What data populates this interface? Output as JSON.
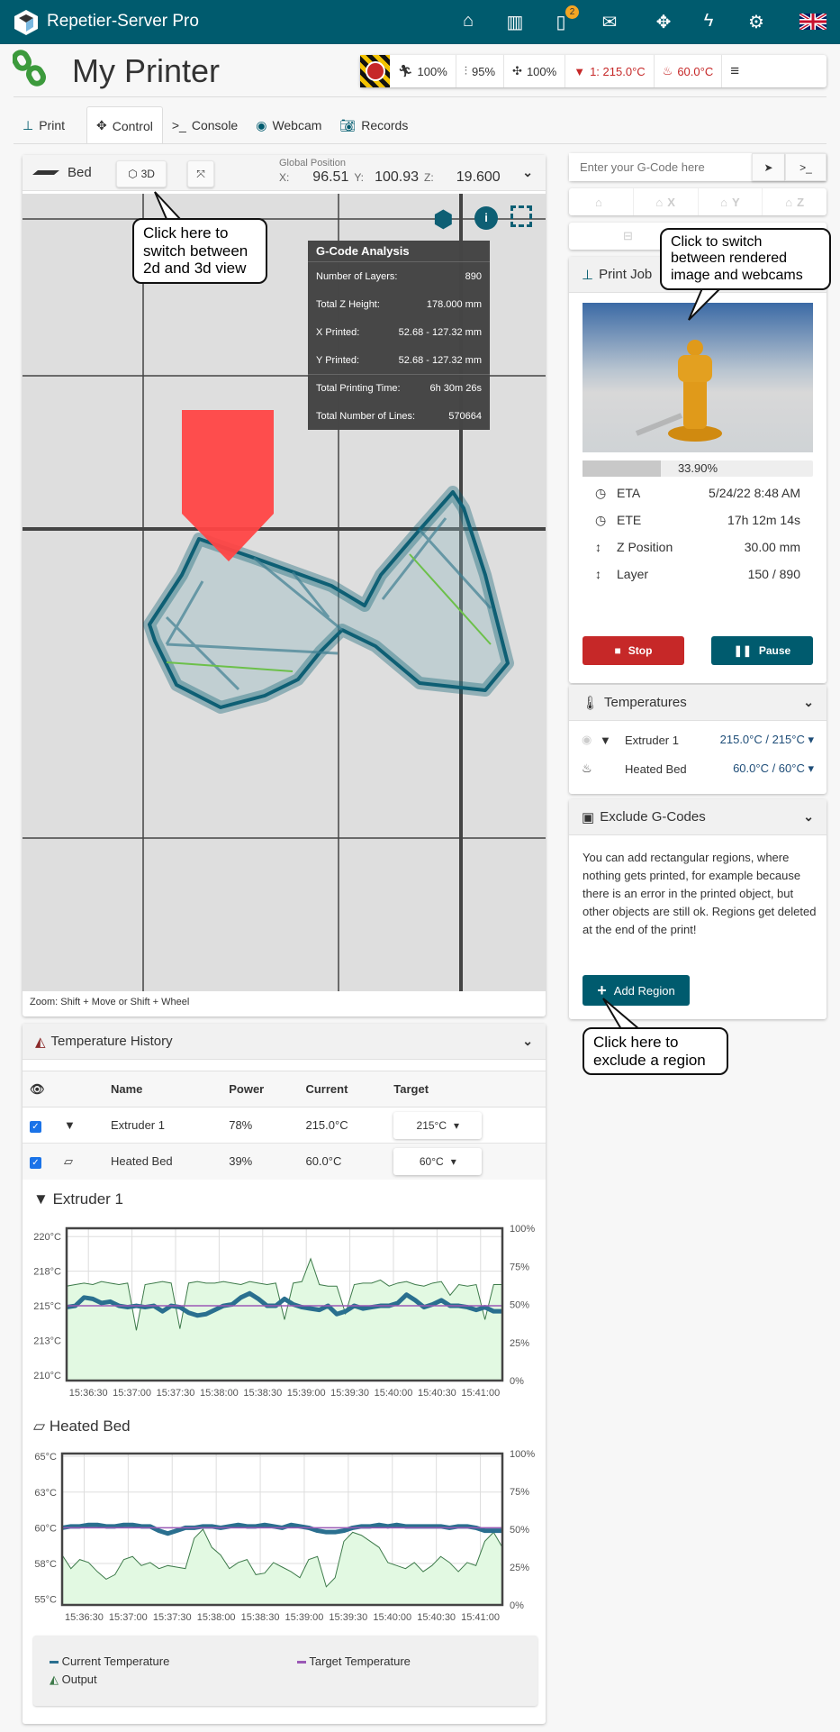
{
  "topbar": {
    "brand": "Repetier-Server Pro",
    "notification_count": "2",
    "icons": [
      "home-icon",
      "archive-icon",
      "tablet-icon",
      "mail-icon",
      "expand-icon",
      "bolt-icon",
      "gear-icon",
      "uk-flag-icon"
    ]
  },
  "header": {
    "title": "My Printer",
    "status": {
      "speed": "100%",
      "flow": "95%",
      "fan": "100%",
      "extruder": "1: 215.0°C",
      "bed": "60.0°C"
    }
  },
  "tabs": [
    {
      "label": "Print"
    },
    {
      "label": "Control"
    },
    {
      "label": "Console"
    },
    {
      "label": "Webcam"
    },
    {
      "label": "Records"
    }
  ],
  "bed_panel": {
    "title": "Bed",
    "view_toggle": "3D",
    "global_position_label": "Global Position",
    "x_label": "X:",
    "x": "96.51",
    "y_label": "Y:",
    "y": "100.93",
    "z_label": "Z:",
    "z": "19.600",
    "zoom_hint": "Zoom: Shift + Move or Shift + Wheel",
    "analysis": {
      "title": "G-Code Analysis",
      "rows": [
        {
          "label": "Number of Layers:",
          "value": "890"
        },
        {
          "label": "Total Z Height:",
          "value": "178.000 mm"
        },
        {
          "label": "X Printed:",
          "value": "52.68 - 127.32 mm"
        },
        {
          "label": "Y Printed:",
          "value": "52.68 - 127.32 mm"
        },
        {
          "label": "Total Printing Time:",
          "value": "6h 30m 26s"
        },
        {
          "label": "Total Number of Lines:",
          "value": "570664"
        }
      ]
    }
  },
  "callouts": {
    "view": "Click here to switch between 2d and 3d view",
    "image": "Click to switch between rendered image and webcams",
    "region": "Click here to exclude a region"
  },
  "gcode": {
    "placeholder": "Enter your G-Code here"
  },
  "home_buttons": [
    "",
    "X",
    "Y",
    "Z"
  ],
  "print_job": {
    "title": "Print Job",
    "progress_text": "33.90%",
    "progress": 33.9,
    "rows": [
      {
        "label": "ETA",
        "value": "5/24/22 8:48 AM"
      },
      {
        "label": "ETE",
        "value": "17h 12m 14s"
      },
      {
        "label": "Z Position",
        "value": "30.00 mm"
      },
      {
        "label": "Layer",
        "value": "150 / 890"
      }
    ],
    "stop": "Stop",
    "pause": "Pause"
  },
  "temperatures": {
    "title": "Temperatures",
    "rows": [
      {
        "name": "Extruder 1",
        "value": "215.0°C / 215°C"
      },
      {
        "name": "Heated Bed",
        "value": "60.0°C / 60°C"
      }
    ]
  },
  "exclude": {
    "title": "Exclude G-Codes",
    "text": "You can add rectangular regions, where nothing gets printed, for example because there is an error in the printed object, but other objects are still ok. Regions get deleted at the end of the print!",
    "button": "Add Region"
  },
  "history": {
    "title": "Temperature History",
    "columns": [
      "Name",
      "Power",
      "Current",
      "Target"
    ],
    "rows": [
      {
        "name": "Extruder 1",
        "power": "78%",
        "current": "215.0°C",
        "target": "215°C",
        "visible": true
      },
      {
        "name": "Heated Bed",
        "power": "39%",
        "current": "60.0°C",
        "target": "60°C",
        "visible": true
      }
    ],
    "legend": {
      "current": "Current Temperature",
      "target": "Target Temperature",
      "output": "Output"
    }
  },
  "colors": {
    "brand": "#005b6e",
    "current": "#2a6f8f",
    "target": "#9b59b6",
    "output_line": "#3d7a4a",
    "output_fill": "#e2f9e2",
    "stop": "#c62828"
  },
  "chart_data": [
    {
      "type": "line",
      "title": "Extruder 1",
      "x": [
        "15:36:15",
        "15:36:21",
        "15:36:27",
        "15:36:33",
        "15:36:39",
        "15:36:45",
        "15:36:51",
        "15:36:57",
        "15:37:03",
        "15:37:09",
        "15:37:15",
        "15:37:21",
        "15:37:27",
        "15:37:33",
        "15:37:39",
        "15:37:45",
        "15:37:51",
        "15:37:57",
        "15:38:03",
        "15:38:09",
        "15:38:15",
        "15:38:21",
        "15:38:27",
        "15:38:33",
        "15:38:39",
        "15:38:45",
        "15:38:51",
        "15:38:57",
        "15:39:03",
        "15:39:09",
        "15:39:15",
        "15:39:21",
        "15:39:27",
        "15:39:33",
        "15:39:39",
        "15:39:45",
        "15:39:51",
        "15:39:57",
        "15:40:03",
        "15:40:09",
        "15:40:15",
        "15:40:21",
        "15:40:27",
        "15:40:33",
        "15:40:39",
        "15:40:45",
        "15:40:51",
        "15:40:57",
        "15:41:03",
        "15:41:09",
        "15:41:15"
      ],
      "xticks": [
        "15:36:30",
        "15:37:00",
        "15:37:30",
        "15:38:00",
        "15:38:30",
        "15:39:00",
        "15:39:30",
        "15:40:00",
        "15:40:30",
        "15:41:00"
      ],
      "ylim": [
        209.6,
        220.6
      ],
      "yticks": [
        210,
        212.5,
        215,
        217.5,
        220
      ],
      "yticklabels": [
        "210°C",
        "213°C",
        "215°C",
        "218°C",
        "220°C"
      ],
      "y2lim": [
        0,
        100
      ],
      "y2ticklabels": [
        "0%",
        "25%",
        "50%",
        "75%",
        "100%"
      ],
      "grid": true,
      "series": [
        {
          "name": "Current Temperature",
          "axis": "left",
          "values": [
            214.9,
            215.0,
            215.6,
            215.5,
            215.2,
            215.3,
            215.0,
            214.9,
            215.0,
            214.9,
            215.0,
            214.6,
            215.0,
            214.9,
            214.5,
            214.3,
            214.4,
            214.7,
            215.0,
            215.1,
            215.6,
            215.9,
            215.5,
            215.0,
            215.0,
            215.5,
            215.1,
            214.9,
            214.8,
            214.7,
            215.0,
            214.4,
            214.6,
            215.0,
            214.8,
            214.9,
            215.0,
            215.0,
            215.2,
            215.8,
            215.4,
            214.9,
            215.1,
            215.4,
            215.0,
            215.0,
            214.9,
            214.7,
            214.9,
            214.6,
            214.6
          ]
        },
        {
          "name": "Target Temperature",
          "axis": "left",
          "values": [
            215,
            215,
            215,
            215,
            215,
            215,
            215,
            215,
            215,
            215,
            215,
            215,
            215,
            215,
            215,
            215,
            215,
            215,
            215,
            215,
            215,
            215,
            215,
            215,
            215,
            215,
            215,
            215,
            215,
            215,
            215,
            215,
            215,
            215,
            215,
            215,
            215,
            215,
            215,
            215,
            215,
            215,
            215,
            215,
            215,
            215,
            215,
            215,
            215,
            215,
            215
          ]
        },
        {
          "name": "Output",
          "axis": "right",
          "values": [
            62,
            63,
            64,
            63,
            65,
            64,
            63,
            64,
            33,
            63,
            64,
            65,
            64,
            34,
            64,
            65,
            64,
            64,
            65,
            64,
            63,
            65,
            64,
            63,
            64,
            40,
            64,
            65,
            80,
            63,
            62,
            62,
            44,
            63,
            64,
            64,
            66,
            62,
            64,
            65,
            63,
            62,
            64,
            65,
            56,
            63,
            62,
            63,
            40,
            63,
            63
          ]
        }
      ]
    },
    {
      "type": "line",
      "title": "Heated Bed",
      "x": [
        "15:36:15",
        "15:36:21",
        "15:36:27",
        "15:36:33",
        "15:36:39",
        "15:36:45",
        "15:36:51",
        "15:36:57",
        "15:37:03",
        "15:37:09",
        "15:37:15",
        "15:37:21",
        "15:37:27",
        "15:37:33",
        "15:37:39",
        "15:37:45",
        "15:37:51",
        "15:37:57",
        "15:38:03",
        "15:38:09",
        "15:38:15",
        "15:38:21",
        "15:38:27",
        "15:38:33",
        "15:38:39",
        "15:38:45",
        "15:38:51",
        "15:38:57",
        "15:39:03",
        "15:39:09",
        "15:39:15",
        "15:39:21",
        "15:39:27",
        "15:39:33",
        "15:39:39",
        "15:39:45",
        "15:39:51",
        "15:39:57",
        "15:40:03",
        "15:40:09",
        "15:40:15",
        "15:40:21",
        "15:40:27",
        "15:40:33",
        "15:40:39",
        "15:40:45",
        "15:40:51",
        "15:40:57",
        "15:41:03",
        "15:41:09",
        "15:41:15"
      ],
      "xticks": [
        "15:36:30",
        "15:37:00",
        "15:37:30",
        "15:38:00",
        "15:38:30",
        "15:39:00",
        "15:39:30",
        "15:40:00",
        "15:40:30",
        "15:41:00"
      ],
      "ylim": [
        54.6,
        65.2
      ],
      "yticks": [
        55,
        57.5,
        60,
        62.5,
        65
      ],
      "yticklabels": [
        "55°C",
        "58°C",
        "60°C",
        "63°C",
        "65°C"
      ],
      "y2lim": [
        0,
        100
      ],
      "y2ticklabels": [
        "0%",
        "25%",
        "50%",
        "75%",
        "100%"
      ],
      "grid": true,
      "series": [
        {
          "name": "Current Temperature",
          "axis": "left",
          "values": [
            60.0,
            60.1,
            60.1,
            60.2,
            60.2,
            60.1,
            60.1,
            60.2,
            60.2,
            60.1,
            60.1,
            59.8,
            59.6,
            59.8,
            60.0,
            60.0,
            60.1,
            60.1,
            60.0,
            60.1,
            60.2,
            60.1,
            60.1,
            60.2,
            60.1,
            60.0,
            60.2,
            60.1,
            60.0,
            59.8,
            59.7,
            59.7,
            59.8,
            60.0,
            60.1,
            60.1,
            60.2,
            60.1,
            60.2,
            60.1,
            60.1,
            60.1,
            60.1,
            60.1,
            60.0,
            60.1,
            60.1,
            60.0,
            59.8,
            59.8,
            59.8
          ]
        },
        {
          "name": "Target Temperature",
          "axis": "left",
          "values": [
            60,
            60,
            60,
            60,
            60,
            60,
            60,
            60,
            60,
            60,
            60,
            60,
            60,
            60,
            60,
            60,
            60,
            60,
            60,
            60,
            60,
            60,
            60,
            60,
            60,
            60,
            60,
            60,
            60,
            60,
            60,
            60,
            60,
            60,
            60,
            60,
            60,
            60,
            60,
            60,
            60,
            60,
            60,
            60,
            60,
            60,
            60,
            60,
            60,
            60,
            60
          ]
        },
        {
          "name": "Output",
          "axis": "right",
          "values": [
            33,
            24,
            30,
            28,
            22,
            17,
            20,
            30,
            32,
            26,
            28,
            24,
            26,
            25,
            24,
            44,
            50,
            38,
            33,
            24,
            28,
            30,
            20,
            21,
            28,
            25,
            22,
            18,
            30,
            32,
            12,
            18,
            42,
            48,
            46,
            42,
            38,
            28,
            26,
            24,
            28,
            22,
            26,
            32,
            28,
            22,
            28,
            26,
            42,
            48,
            38
          ]
        }
      ]
    }
  ]
}
